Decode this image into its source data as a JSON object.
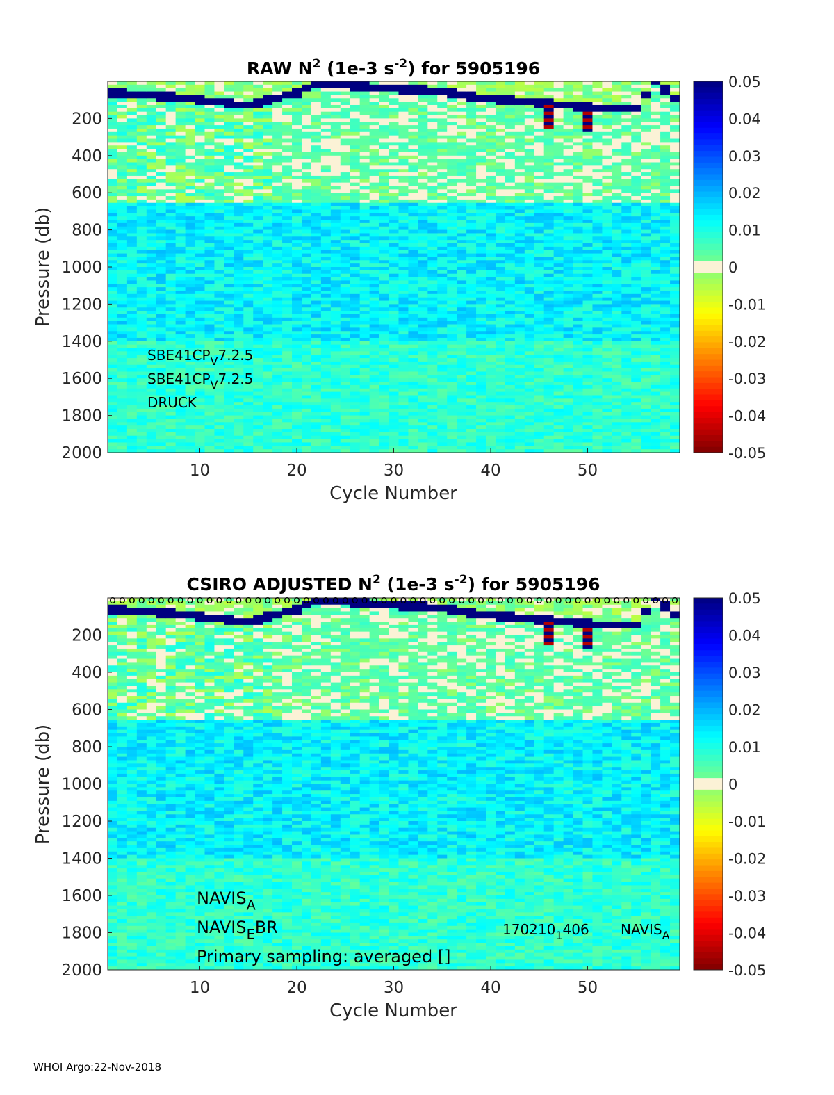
{
  "chart_data": [
    {
      "type": "heatmap",
      "title": "RAW N² (1e-3 s⁻²) for 5905196",
      "title_parts": [
        "RAW N",
        "2",
        " (1e-3 s",
        "-2",
        ") for 5905196"
      ],
      "xlabel": "Cycle Number",
      "ylabel": "Pressure (db)",
      "xlim": [
        1,
        59
      ],
      "ylim": [
        2000,
        0
      ],
      "xticks": [
        10,
        20,
        30,
        40,
        50
      ],
      "yticks": [
        200,
        400,
        600,
        800,
        1000,
        1200,
        1400,
        1600,
        1800,
        2000
      ],
      "colorbar": {
        "min": -0.05,
        "max": 0.05,
        "ticks": [
          "0.05",
          "0.04",
          "0.03",
          "0.02",
          "0.01",
          "0",
          "-0.01",
          "-0.02",
          "-0.03",
          "-0.04",
          "-0.05"
        ]
      },
      "annotations": [
        {
          "main": "SBE41CP",
          "sub": "V",
          "after": "7.2.5"
        },
        {
          "main": "SBE41CP",
          "sub": "V",
          "after": "7.2.5"
        },
        {
          "main": "DRUCK",
          "sub": "",
          "after": ""
        }
      ],
      "mixed_layer_depth_db": [
        [
          1,
          62
        ],
        [
          5,
          75
        ],
        [
          10,
          100
        ],
        [
          15,
          130
        ],
        [
          20,
          60
        ],
        [
          22,
          10
        ],
        [
          25,
          20
        ],
        [
          30,
          40
        ],
        [
          35,
          55
        ],
        [
          40,
          95
        ],
        [
          45,
          115
        ],
        [
          48,
          130
        ],
        [
          52,
          148
        ],
        [
          55,
          150
        ],
        [
          57,
          5
        ],
        [
          59,
          90
        ]
      ]
    },
    {
      "type": "heatmap",
      "title": "CSIRO  ADJUSTED N² (1e-3 s⁻²) for 5905196",
      "title_parts": [
        "CSIRO  ADJUSTED N",
        "2",
        " (1e-3 s",
        "-2",
        ") for 5905196"
      ],
      "xlabel": "Cycle Number",
      "ylabel": "Pressure (db)",
      "xlim": [
        1,
        59
      ],
      "ylim": [
        2000,
        0
      ],
      "xticks": [
        10,
        20,
        30,
        40,
        50
      ],
      "yticks": [
        200,
        400,
        600,
        800,
        1000,
        1200,
        1400,
        1600,
        1800,
        2000
      ],
      "colorbar": {
        "min": -0.05,
        "max": 0.05,
        "ticks": [
          "0.05",
          "0.04",
          "0.03",
          "0.02",
          "0.01",
          "0",
          "-0.01",
          "-0.02",
          "-0.03",
          "-0.04",
          "-0.05"
        ]
      },
      "annotations": [
        {
          "main": "NAVIS",
          "sub": "A",
          "after": ""
        },
        {
          "main": "NAVIS",
          "sub": "E",
          "after": "BR"
        },
        {
          "main": "Primary sampling: averaged []",
          "sub": "",
          "after": ""
        }
      ],
      "right_annotations": [
        {
          "main": "170210",
          "sub": "1",
          "after": "406"
        },
        {
          "main": "NAVIS",
          "sub": "A",
          "after": ""
        }
      ],
      "qc_flag_marker": "o",
      "qc_flag_cycles": [
        1,
        59
      ],
      "mixed_layer_depth_db": [
        [
          1,
          62
        ],
        [
          5,
          75
        ],
        [
          10,
          100
        ],
        [
          15,
          130
        ],
        [
          20,
          60
        ],
        [
          22,
          10
        ],
        [
          25,
          20
        ],
        [
          30,
          40
        ],
        [
          35,
          55
        ],
        [
          40,
          95
        ],
        [
          45,
          115
        ],
        [
          48,
          130
        ],
        [
          52,
          148
        ],
        [
          55,
          150
        ],
        [
          57,
          5
        ],
        [
          59,
          90
        ]
      ]
    }
  ],
  "footer": "WHOI Argo:22-Nov-2018"
}
